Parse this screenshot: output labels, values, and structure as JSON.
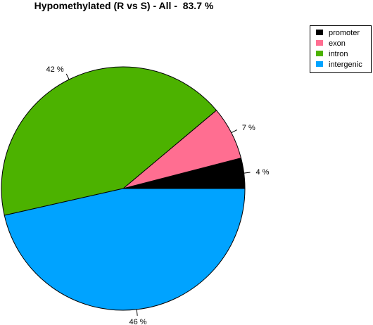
{
  "chart_data": {
    "type": "pie",
    "title": "Hypomethylated (R vs S) - All -  83.7 %",
    "slices": [
      {
        "name": "promoter",
        "value": 4,
        "label": "4 %",
        "color": "#000000"
      },
      {
        "name": "exon",
        "value": 7,
        "label": "7 %",
        "color": "#ff6e91"
      },
      {
        "name": "intron",
        "value": 42,
        "label": "42 %",
        "color": "#4cb200"
      },
      {
        "name": "intergenic",
        "value": 46,
        "label": "46 %",
        "color": "#00a3ff"
      }
    ],
    "legend": {
      "placement": "top-right"
    }
  }
}
